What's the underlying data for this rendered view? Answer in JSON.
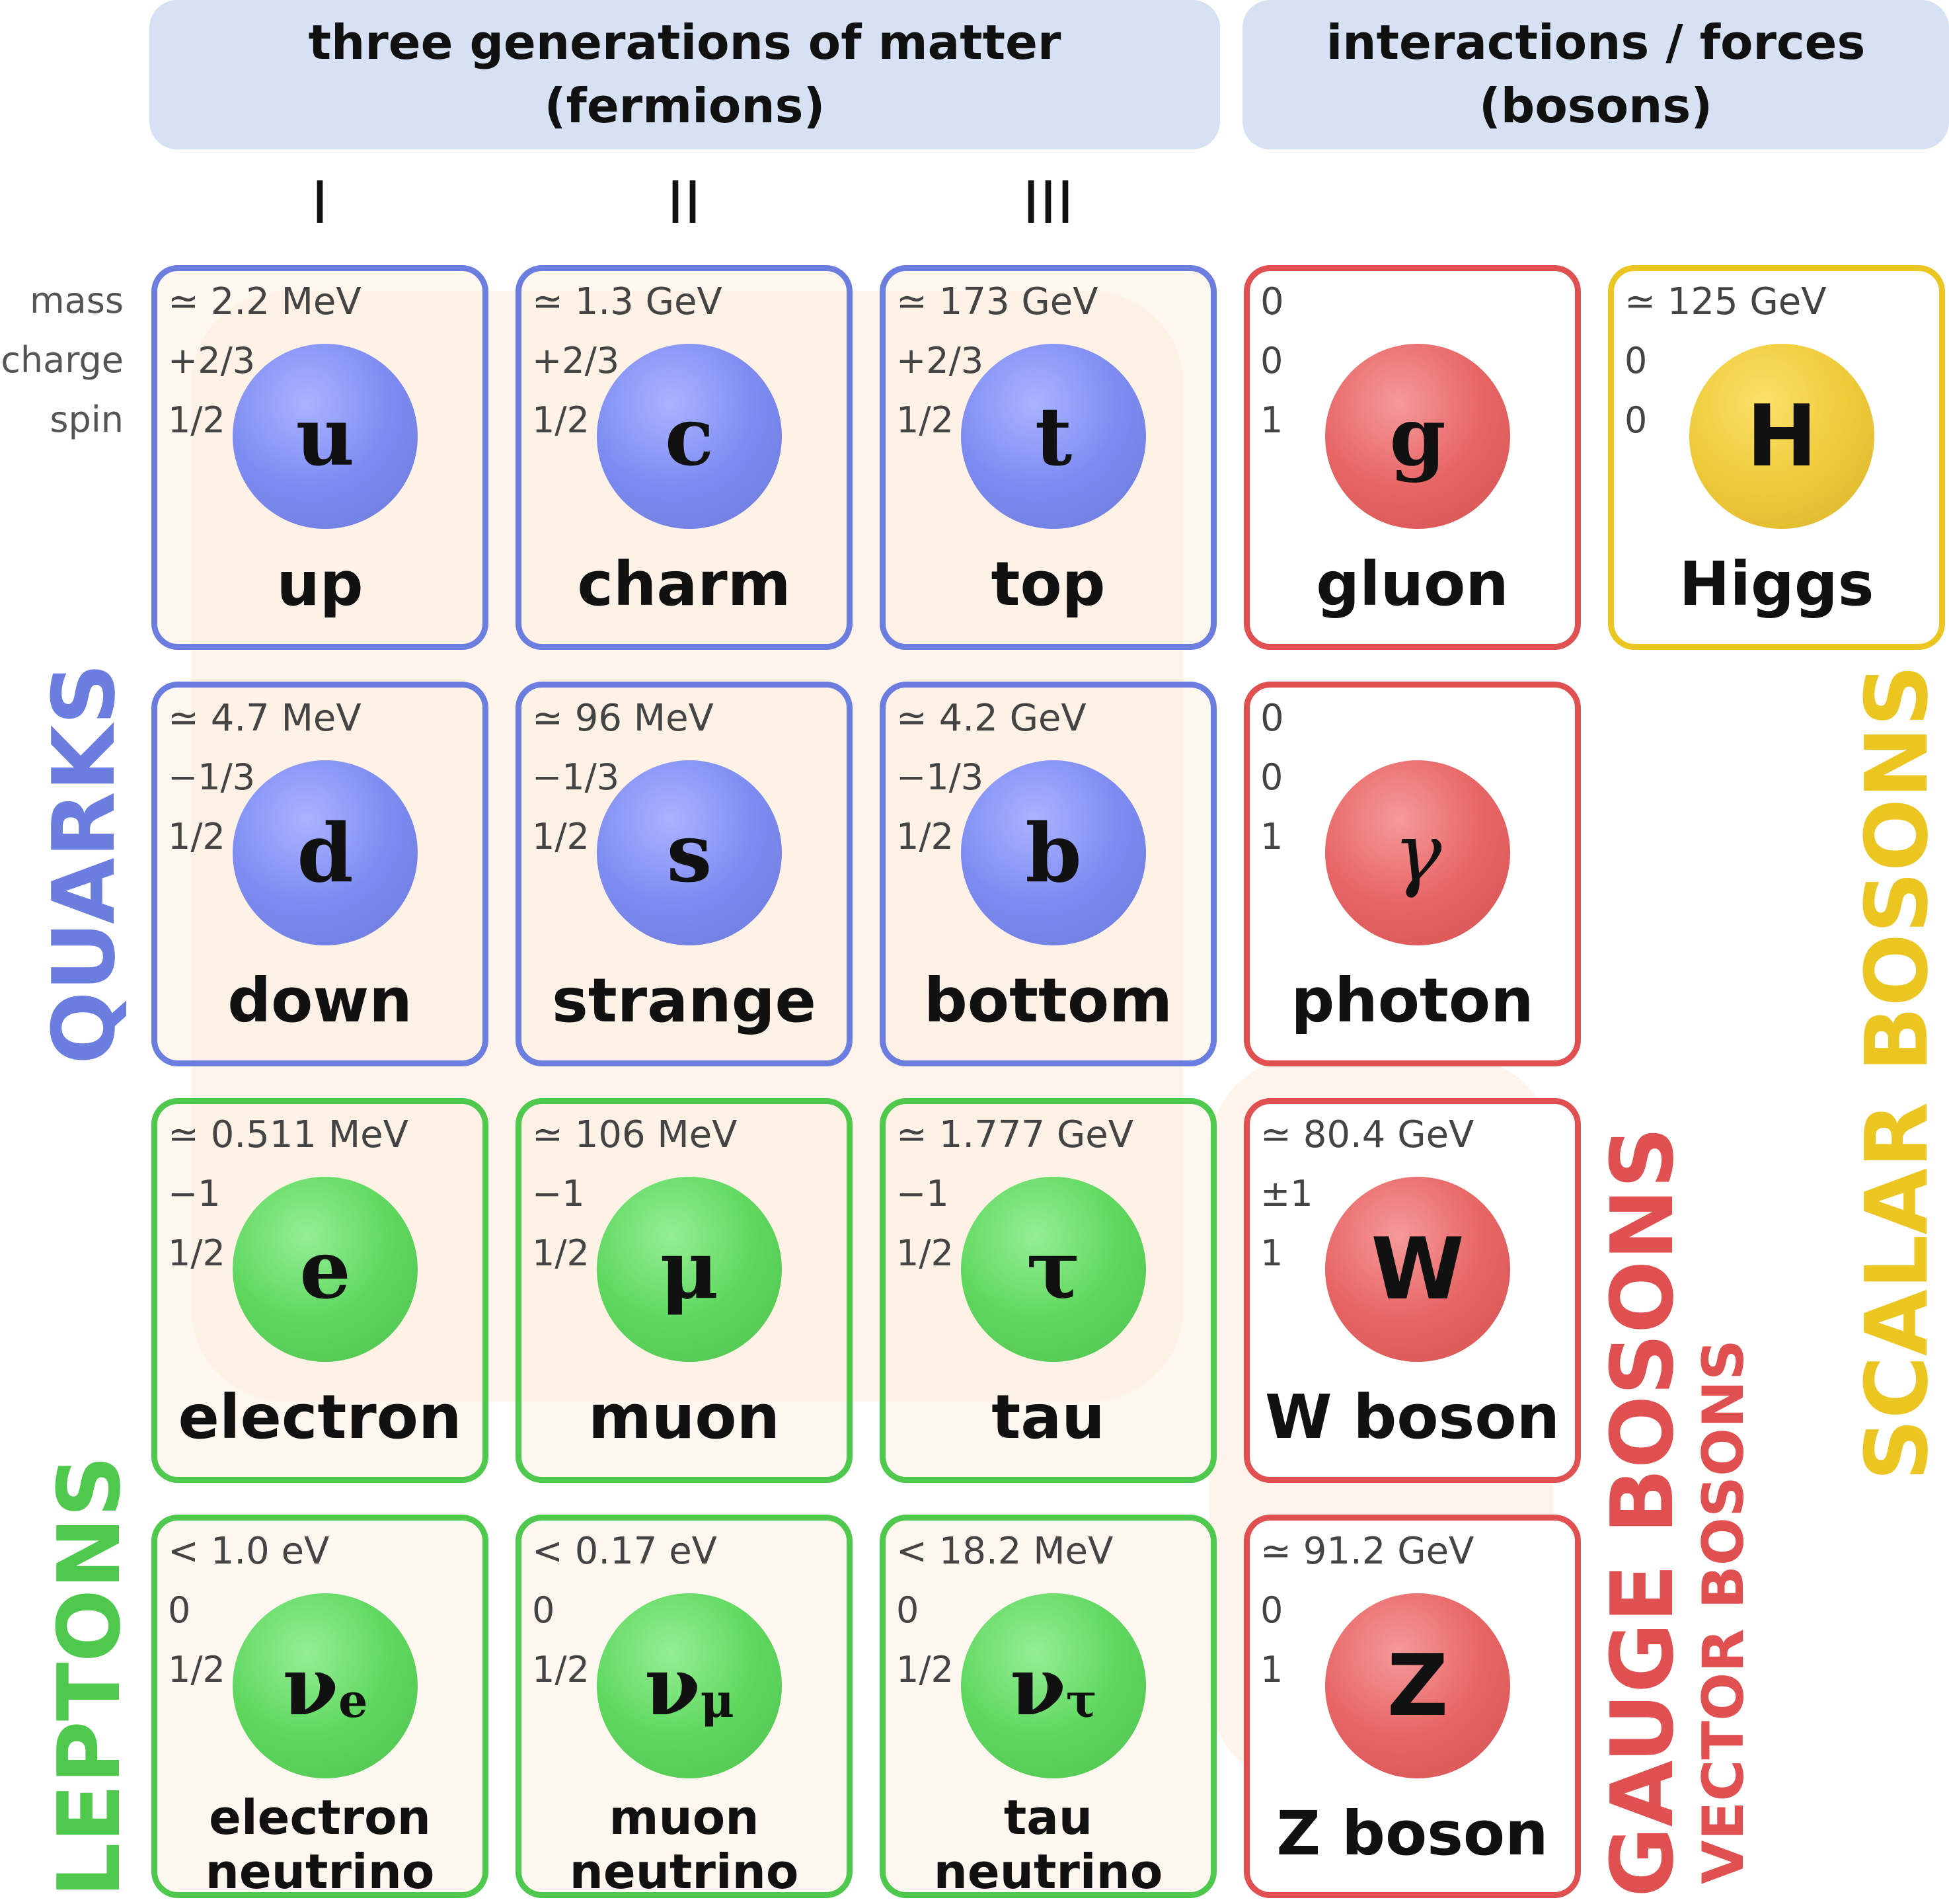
{
  "header": {
    "fermions_line1": "three generations of matter",
    "fermions_line2": "(fermions)",
    "bosons_line1": "interactions / forces",
    "bosons_line2": "(bosons)"
  },
  "generations": [
    "I",
    "II",
    "III"
  ],
  "row_labels": {
    "mass": "mass",
    "charge": "charge",
    "spin": "spin"
  },
  "side_labels": {
    "quarks": "QUARKS",
    "leptons": "LEPTONS",
    "gauge": "GAUGE BOSONS",
    "vector": "VECTOR BOSONS",
    "scalar": "SCALAR BOSONS"
  },
  "colors": {
    "quark": "#6c7de0",
    "lepton": "#4ec94e",
    "gauge": "#e05050",
    "scalar": "#ecc620",
    "header_bg": "#d6e2f3"
  },
  "particles": [
    {
      "id": "up",
      "mass": "≃ 2.2 MeV",
      "charge": "+2/3",
      "spin": "1/2",
      "symbol": "u",
      "name": "up"
    },
    {
      "id": "charm",
      "mass": "≃ 1.3 GeV",
      "charge": "+2/3",
      "spin": "1/2",
      "symbol": "c",
      "name": "charm"
    },
    {
      "id": "top",
      "mass": "≃ 173 GeV",
      "charge": "+2/3",
      "spin": "1/2",
      "symbol": "t",
      "name": "top"
    },
    {
      "id": "gluon",
      "mass": "0",
      "charge": "0",
      "spin": "1",
      "symbol": "g",
      "name": "gluon"
    },
    {
      "id": "higgs",
      "mass": "≃ 125 GeV",
      "charge": "0",
      "spin": "0",
      "symbol": "H",
      "name": "Higgs"
    },
    {
      "id": "down",
      "mass": "≃ 4.7 MeV",
      "charge": "−1/3",
      "spin": "1/2",
      "symbol": "d",
      "name": "down"
    },
    {
      "id": "strange",
      "mass": "≃ 96 MeV",
      "charge": "−1/3",
      "spin": "1/2",
      "symbol": "s",
      "name": "strange"
    },
    {
      "id": "bottom",
      "mass": "≃ 4.2 GeV",
      "charge": "−1/3",
      "spin": "1/2",
      "symbol": "b",
      "name": "bottom"
    },
    {
      "id": "photon",
      "mass": "0",
      "charge": "0",
      "spin": "1",
      "symbol": "γ",
      "name": "photon"
    },
    {
      "id": "electron",
      "mass": "≃ 0.511 MeV",
      "charge": "−1",
      "spin": "1/2",
      "symbol": "e",
      "name": "electron"
    },
    {
      "id": "muon",
      "mass": "≃ 106 MeV",
      "charge": "−1",
      "spin": "1/2",
      "symbol": "μ",
      "name": "muon"
    },
    {
      "id": "tau",
      "mass": "≃ 1.777 GeV",
      "charge": "−1",
      "spin": "1/2",
      "symbol": "τ",
      "name": "tau"
    },
    {
      "id": "w",
      "mass": "≃ 80.4 GeV",
      "charge": "±1",
      "spin": "1",
      "symbol": "W",
      "name": "W boson"
    },
    {
      "id": "nue",
      "mass": "< 1.0 eV",
      "charge": "0",
      "spin": "1/2",
      "symbol": "ν",
      "symbol_sub": "e",
      "name": "electron",
      "name2": "neutrino"
    },
    {
      "id": "numu",
      "mass": "< 0.17 eV",
      "charge": "0",
      "spin": "1/2",
      "symbol": "ν",
      "symbol_sub": "μ",
      "name": "muon",
      "name2": "neutrino"
    },
    {
      "id": "nutau",
      "mass": "< 18.2 MeV",
      "charge": "0",
      "spin": "1/2",
      "symbol": "ν",
      "symbol_sub": "τ",
      "name": "tau",
      "name2": "neutrino"
    },
    {
      "id": "z",
      "mass": "≃ 91.2 GeV",
      "charge": "0",
      "spin": "1",
      "symbol": "Z",
      "name": "Z boson"
    }
  ]
}
